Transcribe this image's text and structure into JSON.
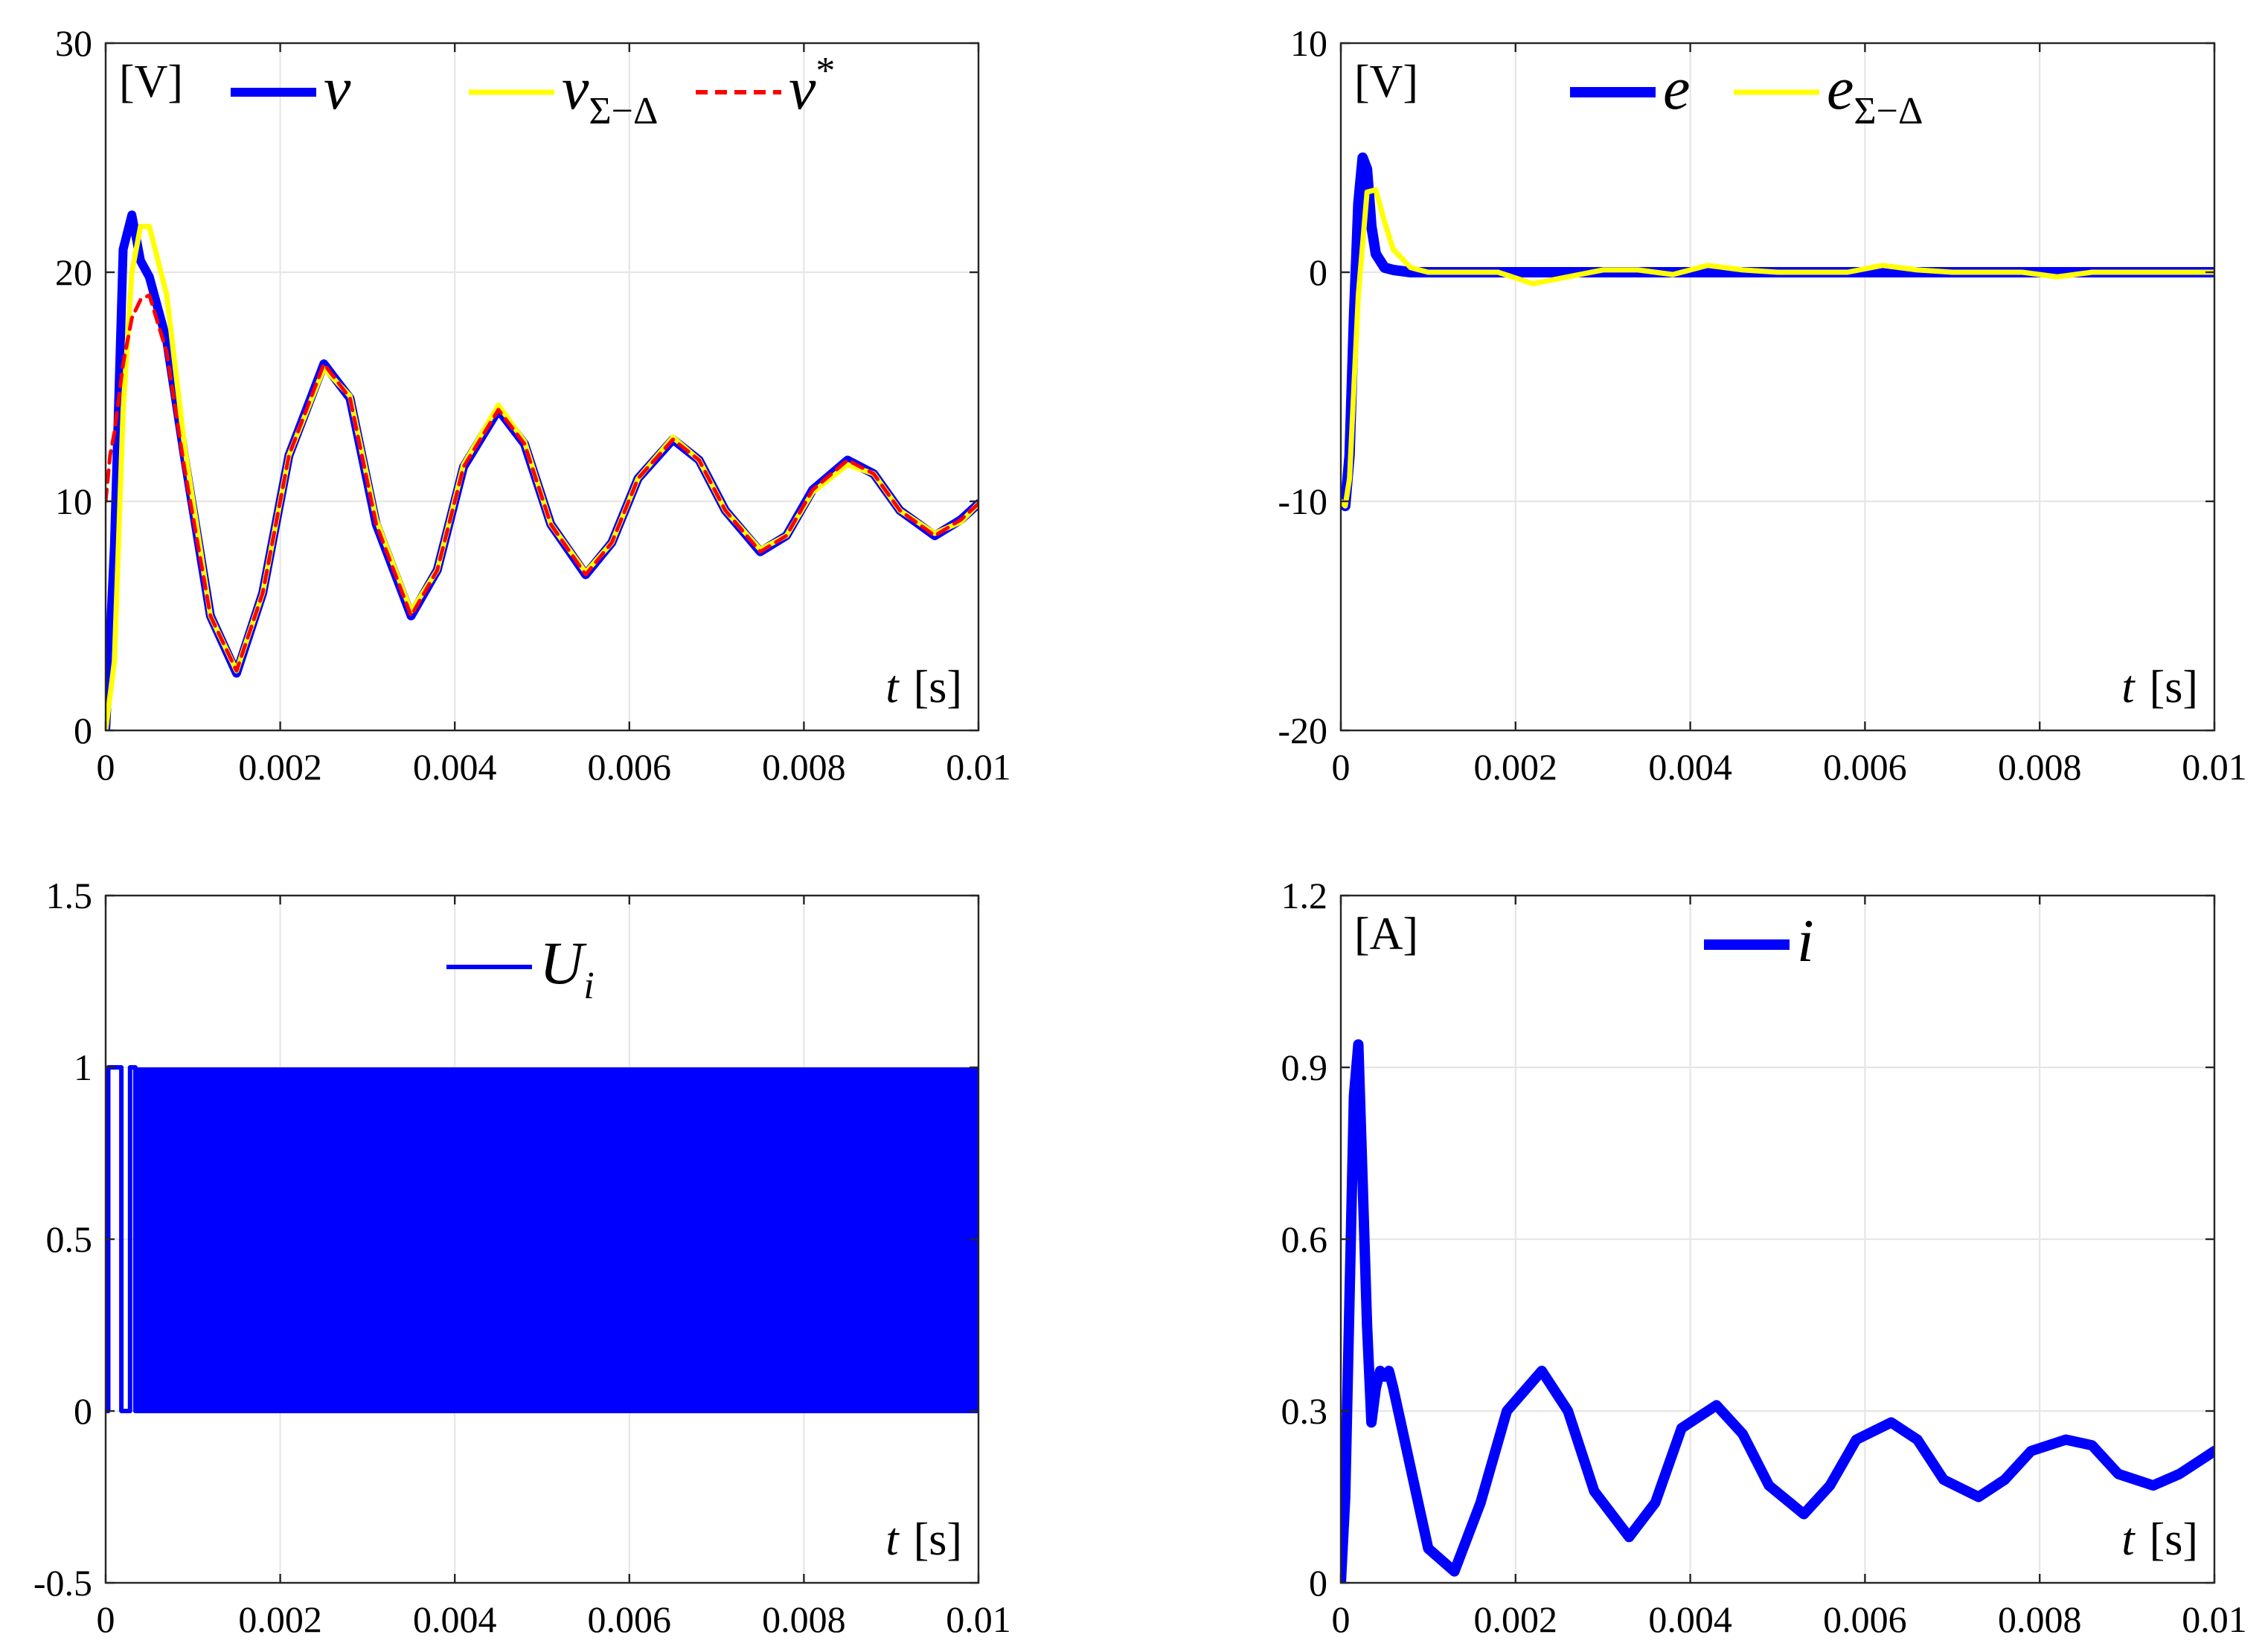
{
  "chart_data": [
    {
      "type": "line",
      "id": "top-left",
      "ylim": [
        0,
        30
      ],
      "xlim": [
        0,
        0.01
      ],
      "yticks": [
        "0",
        "10",
        "20",
        "30"
      ],
      "xticks": [
        "0",
        "0.002",
        "0.004",
        "0.006",
        "0.008",
        "0.01"
      ],
      "unit": "[V]",
      "xlabel": "t",
      "xunit": "[s]",
      "grid": true,
      "legend": {
        "placement": "top",
        "entries": [
          "v",
          "vΣ−Δ",
          "v*"
        ]
      },
      "series": [
        {
          "name": "v",
          "color": "#0000ff",
          "x": [
            0,
            0.0001,
            0.0002,
            0.0003,
            0.0004,
            0.0005,
            0.0007,
            0.0009,
            0.0012,
            0.0015,
            0.0018,
            0.0021,
            0.0025,
            0.0028,
            0.0031,
            0.0035,
            0.0038,
            0.0041,
            0.0045,
            0.0048,
            0.0051,
            0.0055,
            0.0058,
            0.0061,
            0.0065,
            0.0068,
            0.0071,
            0.0075,
            0.0078,
            0.0081,
            0.0085,
            0.0088,
            0.0091,
            0.0095,
            0.0098,
            0.01
          ],
          "values": [
            0,
            8,
            21,
            22.5,
            20.5,
            19.8,
            17,
            12,
            5,
            2.5,
            6,
            12,
            16,
            14.5,
            9,
            5,
            7,
            11.5,
            14,
            12.5,
            9,
            6.8,
            8.2,
            11,
            12.7,
            11.8,
            9.6,
            7.8,
            8.5,
            10.5,
            11.8,
            11.2,
            9.6,
            8.5,
            9.2,
            9.9
          ]
        },
        {
          "name": "vΣ−Δ",
          "color": "#ffff00",
          "x": [
            0,
            0.0001,
            0.0002,
            0.0003,
            0.0004,
            0.0005,
            0.0007,
            0.0009,
            0.0012,
            0.0015,
            0.0018,
            0.0021,
            0.0025,
            0.0028,
            0.0031,
            0.0035,
            0.0038,
            0.0041,
            0.0045,
            0.0048,
            0.0051,
            0.0055,
            0.0058,
            0.0061,
            0.0065,
            0.0068,
            0.0071,
            0.0075,
            0.0078,
            0.0081,
            0.0085,
            0.0088,
            0.0091,
            0.0095,
            0.0098,
            0.01
          ],
          "values": [
            0,
            3,
            14,
            20,
            22,
            22,
            19,
            12.5,
            5,
            2.6,
            6,
            12,
            15.8,
            14.6,
            9.2,
            5.2,
            7,
            11.6,
            14.2,
            12.6,
            9,
            6.9,
            8.2,
            11,
            12.8,
            11.8,
            9.6,
            7.9,
            8.5,
            10.4,
            11.6,
            11.2,
            9.6,
            8.6,
            9.1,
            9.9
          ]
        },
        {
          "name": "v*",
          "color": "#ff0000",
          "x": [
            0,
            5e-05,
            0.0001,
            0.0002,
            0.0003,
            0.0004,
            0.0005,
            0.0007,
            0.0009,
            0.0012,
            0.0015,
            0.0018,
            0.0021,
            0.0025,
            0.0028,
            0.0031,
            0.0035,
            0.0038,
            0.0041,
            0.0045,
            0.0048,
            0.0051,
            0.0055,
            0.0058,
            0.0061,
            0.0065,
            0.0068,
            0.0071,
            0.0075,
            0.0078,
            0.0081,
            0.0085,
            0.0088,
            0.0091,
            0.0095,
            0.0098,
            0.01
          ],
          "values": [
            10,
            12,
            13,
            16,
            18,
            18.8,
            19,
            16.5,
            11.5,
            5,
            2.6,
            6,
            12,
            16,
            14.5,
            9,
            5,
            7,
            11.5,
            14,
            12.5,
            9,
            6.8,
            8.2,
            11,
            12.7,
            11.8,
            9.6,
            7.8,
            8.5,
            10.5,
            11.8,
            11.2,
            9.6,
            8.5,
            9.2,
            9.9
          ]
        }
      ]
    },
    {
      "type": "line",
      "id": "top-right",
      "ylim": [
        -20,
        10
      ],
      "xlim": [
        0,
        0.01
      ],
      "yticks": [
        "-20",
        "-10",
        "0",
        "10"
      ],
      "xticks": [
        "0",
        "0.002",
        "0.004",
        "0.006",
        "0.008",
        "0.01"
      ],
      "unit": "[V]",
      "xlabel": "t",
      "xunit": "[s]",
      "grid": true,
      "legend": {
        "placement": "top",
        "entries": [
          "e",
          "eΣ−Δ"
        ]
      },
      "series": [
        {
          "name": "e",
          "color": "#0000ff",
          "x": [
            0,
            5e-05,
            0.0001,
            0.00015,
            0.0002,
            0.00025,
            0.0003,
            0.00035,
            0.0004,
            0.0005,
            0.0006,
            0.0008,
            0.001,
            0.002,
            0.004,
            0.006,
            0.008,
            0.01
          ],
          "values": [
            -10,
            -10.2,
            -8,
            -2,
            3,
            5,
            4.5,
            2,
            0.8,
            0.2,
            0.1,
            0,
            0,
            0,
            0,
            0,
            0,
            0
          ]
        },
        {
          "name": "eΣ−Δ",
          "color": "#ffff00",
          "x": [
            0,
            5e-05,
            0.0001,
            0.0002,
            0.0003,
            0.0004,
            0.0005,
            0.0006,
            0.0008,
            0.001,
            0.0014,
            0.0018,
            0.0022,
            0.0026,
            0.003,
            0.0034,
            0.0038,
            0.0042,
            0.0046,
            0.005,
            0.0054,
            0.0058,
            0.0062,
            0.0066,
            0.007,
            0.0074,
            0.0078,
            0.0082,
            0.0086,
            0.009,
            0.0094,
            0.0098,
            0.01
          ],
          "values": [
            -10,
            -10.2,
            -9,
            -1,
            3.5,
            3.6,
            2.2,
            1,
            0.2,
            0,
            0,
            0,
            -0.5,
            -0.2,
            0.1,
            0.1,
            -0.1,
            0.3,
            0.1,
            0,
            0,
            0,
            0.3,
            0.1,
            0,
            0,
            0,
            -0.2,
            0,
            0,
            0,
            0,
            0
          ]
        }
      ]
    },
    {
      "type": "line",
      "id": "bottom-left",
      "ylim": [
        -0.5,
        1.5
      ],
      "xlim": [
        0,
        0.01
      ],
      "yticks": [
        "-0.5",
        "0",
        "0.5",
        "1",
        "1.5"
      ],
      "xticks": [
        "0",
        "0.002",
        "0.004",
        "0.006",
        "0.008",
        "0.01"
      ],
      "unit": "",
      "xlabel": "t",
      "xunit": "[s]",
      "grid": true,
      "legend": {
        "placement": "top",
        "entries": [
          "Ui"
        ]
      },
      "series": [
        {
          "name": "Ui",
          "color": "#0000ff",
          "x": [
            0,
            3e-05,
            3e-05,
            0.00018,
            0.00018,
            0.00028,
            0.00028,
            0.00034,
            0.00034,
            0.01
          ],
          "values": [
            0,
            0,
            1,
            1,
            0,
            0,
            1,
            1,
            0,
            0
          ],
          "switching_band": {
            "from_x": 0.00034,
            "to_x": 0.01,
            "low": 0,
            "high": 1
          }
        }
      ]
    },
    {
      "type": "line",
      "id": "bottom-right",
      "ylim": [
        0,
        1.2
      ],
      "xlim": [
        0,
        0.01
      ],
      "yticks": [
        "0",
        "0.3",
        "0.6",
        "0.9",
        "1.2"
      ],
      "xticks": [
        "0",
        "0.002",
        "0.004",
        "0.006",
        "0.008",
        "0.01"
      ],
      "unit": "[A]",
      "xlabel": "t",
      "xunit": "[s]",
      "grid": true,
      "legend": {
        "placement": "top",
        "entries": [
          "i"
        ]
      },
      "series": [
        {
          "name": "i",
          "color": "#0000ff",
          "x": [
            0,
            5e-05,
            0.0001,
            0.00015,
            0.0002,
            0.00025,
            0.0003,
            0.00035,
            0.0004,
            0.00045,
            0.0005,
            0.00055,
            0.0006,
            0.0007,
            0.0008,
            0.001,
            0.0013,
            0.0016,
            0.0019,
            0.0023,
            0.0026,
            0.0029,
            0.0033,
            0.0036,
            0.0039,
            0.0043,
            0.0046,
            0.0049,
            0.0053,
            0.0056,
            0.0059,
            0.0063,
            0.0066,
            0.0069,
            0.0073,
            0.0076,
            0.0079,
            0.0083,
            0.0086,
            0.0089,
            0.0093,
            0.0096,
            0.0099,
            0.01
          ],
          "values": [
            0,
            0.15,
            0.5,
            0.85,
            0.94,
            0.7,
            0.45,
            0.28,
            0.34,
            0.37,
            0.36,
            0.37,
            0.34,
            0.27,
            0.2,
            0.06,
            0.02,
            0.14,
            0.3,
            0.37,
            0.3,
            0.16,
            0.08,
            0.14,
            0.27,
            0.31,
            0.26,
            0.17,
            0.12,
            0.17,
            0.25,
            0.28,
            0.25,
            0.18,
            0.15,
            0.18,
            0.23,
            0.25,
            0.24,
            0.19,
            0.17,
            0.19,
            0.22,
            0.23
          ]
        }
      ]
    }
  ]
}
